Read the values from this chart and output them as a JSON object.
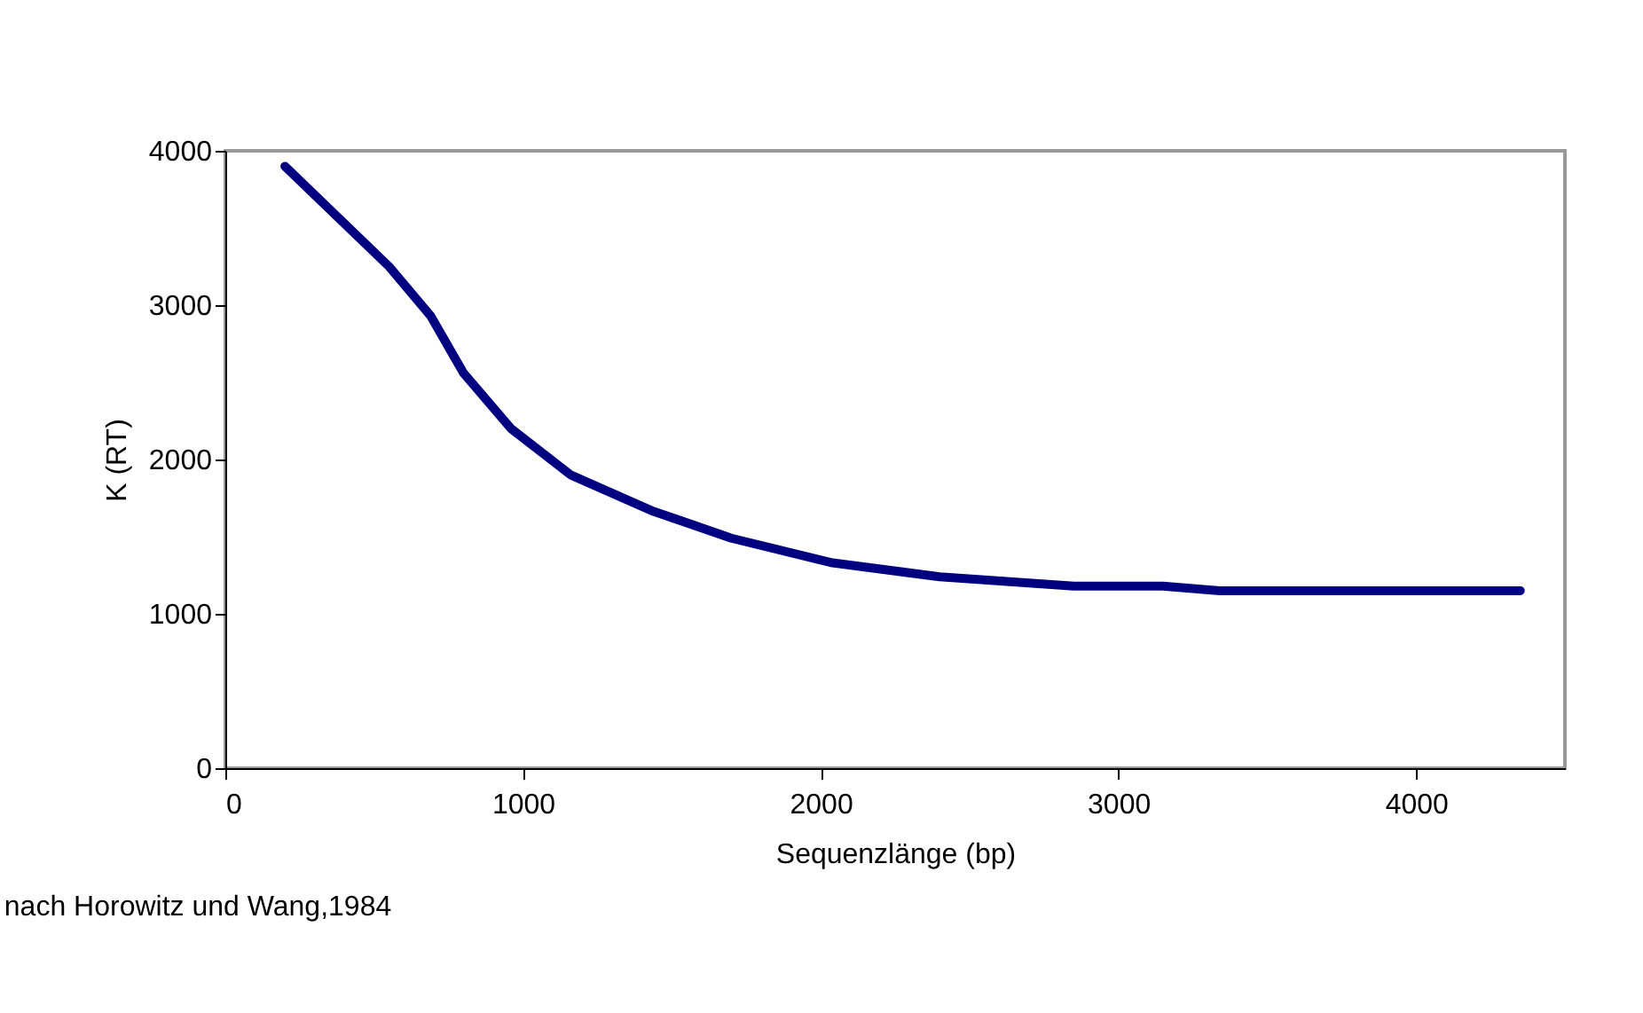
{
  "chart_data": {
    "type": "line",
    "xlabel": "Sequenzlänge (bp)",
    "ylabel": "K (RT)",
    "x": [
      200,
      550,
      690,
      800,
      960,
      1160,
      1430,
      1700,
      2040,
      2400,
      2850,
      3150,
      3340,
      4350
    ],
    "series": [
      {
        "color": "#000080",
        "values": [
          3900,
          3250,
          2930,
          2560,
          2200,
          1900,
          1670,
          1490,
          1330,
          1240,
          1180,
          1180,
          1150,
          1150
        ]
      }
    ],
    "xlim": [
      0,
      4500
    ],
    "xticks": [
      0,
      1000,
      2000,
      3000,
      4000
    ],
    "ylim": [
      0,
      4000
    ],
    "yticks": [
      0,
      1000,
      2000,
      3000,
      4000
    ],
    "grid": false,
    "marker": "none",
    "line_style": "solid",
    "annotations": [
      "nach Horowitz und Wang,1984"
    ]
  }
}
